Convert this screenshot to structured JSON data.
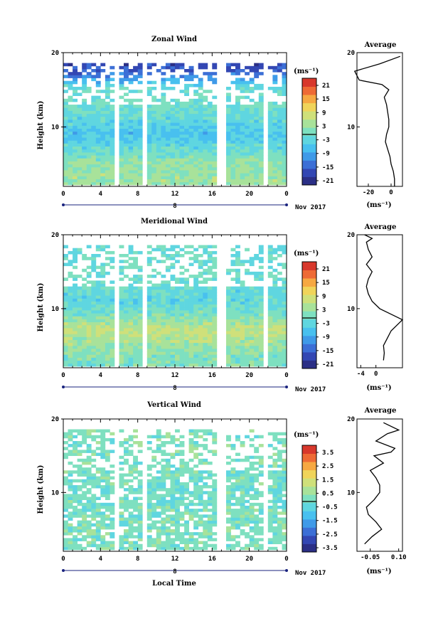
{
  "figure": {
    "xlabel": "Local Time",
    "date_label": "Nov 2017",
    "day_label": "8",
    "panels": [
      {
        "title": "Zonal Wind",
        "ylabel": "Height (km)",
        "unit": "(ms⁻¹)",
        "colorbar_ticks": [
          "21",
          "15",
          "9",
          "3",
          "-3",
          "-9",
          "-15",
          "-21"
        ],
        "avg_title": "Average",
        "avg_unit": "(ms⁻¹)",
        "avg_xticks": [
          "-20",
          "0"
        ]
      },
      {
        "title": "Meridional Wind",
        "ylabel": "Height (km)",
        "unit": "(ms⁻¹)",
        "colorbar_ticks": [
          "21",
          "15",
          "9",
          "3",
          "-3",
          "-9",
          "-15",
          "-21"
        ],
        "avg_title": "Average",
        "avg_unit": "(ms⁻¹)",
        "avg_xticks": [
          "-4",
          "0"
        ]
      },
      {
        "title": "Vertical Wind",
        "ylabel": "Height (km)",
        "unit": "(ms⁻¹)",
        "colorbar_ticks": [
          "3.5",
          "2.5",
          "1.5",
          "0.5",
          "-0.5",
          "-1.5",
          "-2.5",
          "-3.5"
        ],
        "avg_title": "Average",
        "avg_unit": "(ms⁻¹)",
        "avg_xticks": [
          "-0.05",
          "0.10"
        ]
      }
    ]
  },
  "chart_data": [
    {
      "type": "heatmap",
      "title": "Zonal Wind",
      "ylabel": "Height (km)",
      "xlim": [
        0,
        24
      ],
      "ylim": [
        2,
        20
      ],
      "xticks": [
        "0",
        "4",
        "8",
        "12",
        "16",
        "20",
        "0"
      ],
      "yticks": [
        "10",
        "20"
      ],
      "colorbar_range": [
        -24,
        24
      ],
      "colorbar_unit": "(ms⁻¹)",
      "data_gaps_hours": [
        5.8,
        8.9,
        17.0,
        21.8
      ],
      "heights_km": [
        3,
        5,
        7,
        9,
        11,
        13,
        15,
        17,
        19
      ],
      "values_ms": [
        3,
        2,
        -3,
        -7,
        -3,
        -1,
        -2,
        -15,
        -20
      ]
    },
    {
      "type": "heatmap",
      "title": "Meridional Wind",
      "ylabel": "Height (km)",
      "xlim": [
        0,
        24
      ],
      "ylim": [
        2,
        20
      ],
      "xticks": [
        "0",
        "4",
        "8",
        "12",
        "16",
        "20",
        "0"
      ],
      "yticks": [
        "10",
        "20"
      ],
      "colorbar_range": [
        -24,
        24
      ],
      "colorbar_unit": "(ms⁻¹)",
      "data_gaps_hours": [
        5.8,
        8.9,
        17.0,
        21.8
      ],
      "heights_km": [
        3,
        5,
        7,
        9,
        11,
        13,
        15,
        17,
        19
      ],
      "values_ms": [
        0,
        3,
        6,
        0,
        -4,
        -2,
        -1,
        -2,
        -3
      ]
    },
    {
      "type": "heatmap",
      "title": "Vertical Wind",
      "ylabel": "Height (km)",
      "xlim": [
        0,
        24
      ],
      "ylim": [
        2,
        20
      ],
      "xticks": [
        "0",
        "4",
        "8",
        "12",
        "16",
        "20",
        "0"
      ],
      "yticks": [
        "10",
        "20"
      ],
      "colorbar_range": [
        -4,
        4
      ],
      "colorbar_unit": "(ms⁻¹)",
      "data_gaps_hours": [
        5.8,
        8.9,
        17.0,
        21.8
      ],
      "heights_km": [
        3,
        5,
        7,
        9,
        11,
        13,
        15,
        17,
        19
      ],
      "values_ms": [
        0,
        0,
        0,
        -0.2,
        -0.1,
        0,
        0,
        0,
        0
      ]
    },
    {
      "type": "line",
      "title": "Average",
      "xlim": [
        -30,
        10
      ],
      "ylim": [
        2,
        20
      ],
      "x": [
        3,
        3,
        2,
        0,
        -1,
        -3,
        -5,
        -4,
        -2,
        -2,
        -3,
        -4,
        -6,
        -2,
        -8,
        -28,
        -32,
        -10,
        8
      ],
      "y": [
        2,
        3,
        4,
        5,
        6,
        7,
        8,
        9,
        10,
        11,
        12,
        13,
        14,
        15,
        15.7,
        16.3,
        17.5,
        18.5,
        19.5
      ]
    },
    {
      "type": "line",
      "title": "Average",
      "xlim": [
        -5,
        7
      ],
      "ylim": [
        2,
        20
      ],
      "x": [
        2,
        2.2,
        2,
        3,
        4,
        6,
        7,
        5,
        1,
        -1,
        -2,
        -2.5,
        -2,
        -1,
        -2.5,
        -1,
        -2,
        -2.5,
        -1,
        -3
      ],
      "y": [
        3,
        4,
        5,
        6,
        7,
        8,
        8.5,
        9,
        10,
        11,
        12,
        13,
        14,
        15,
        16,
        17,
        18,
        19,
        19.5,
        20
      ]
    },
    {
      "type": "line",
      "title": "Average",
      "xlim": [
        -0.12,
        0.12
      ],
      "ylim": [
        2,
        20
      ],
      "x": [
        -0.08,
        -0.04,
        0.01,
        -0.02,
        -0.06,
        -0.07,
        -0.03,
        0.0,
        0.0,
        -0.02,
        -0.05,
        0.02,
        -0.03,
        0.06,
        0.08,
        -0.02,
        0.04,
        0.1,
        0.02
      ],
      "y": [
        3,
        4,
        5,
        6,
        7,
        8,
        9,
        10,
        11,
        12,
        13,
        14,
        15,
        15.5,
        16,
        17,
        18,
        18.5,
        19.5
      ]
    }
  ]
}
